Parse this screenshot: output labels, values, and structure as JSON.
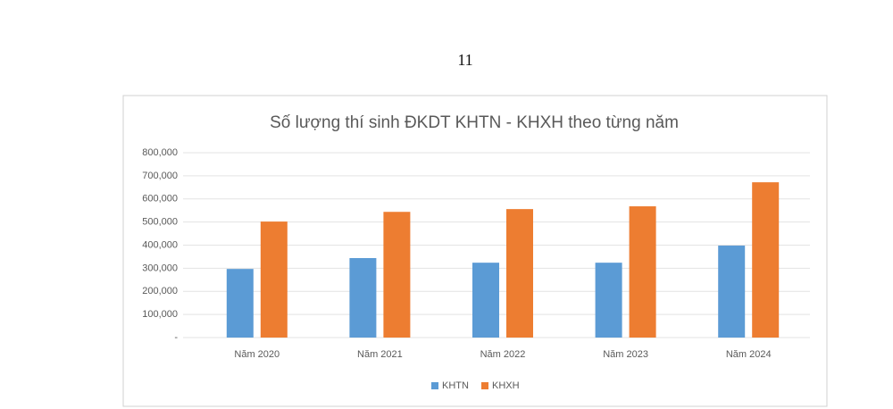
{
  "page_number": "11",
  "chart_data": {
    "type": "bar",
    "title": "Số lượng thí sinh ĐKDT KHTN - KHXH theo từng năm",
    "categories": [
      "Năm 2020",
      "Năm 2021",
      "Năm 2022",
      "Năm 2023",
      "Năm 2024"
    ],
    "series": [
      {
        "name": "KHTN",
        "color": "#5b9bd5",
        "values": [
          297000,
          344000,
          324000,
          324000,
          398000
        ]
      },
      {
        "name": "KHXH",
        "color": "#ed7d31",
        "values": [
          502000,
          544000,
          556000,
          568000,
          672000
        ]
      }
    ],
    "ylim": [
      0,
      800000
    ],
    "yticks": [
      {
        "value": 0,
        "label": "-"
      },
      {
        "value": 100000,
        "label": "100,000"
      },
      {
        "value": 200000,
        "label": "200,000"
      },
      {
        "value": 300000,
        "label": "300,000"
      },
      {
        "value": 400000,
        "label": "400,000"
      },
      {
        "value": 500000,
        "label": "500,000"
      },
      {
        "value": 600000,
        "label": "600,000"
      },
      {
        "value": 700000,
        "label": "700,000"
      },
      {
        "value": 800000,
        "label": "800,000"
      }
    ],
    "grid": true,
    "legend": "bottom"
  }
}
